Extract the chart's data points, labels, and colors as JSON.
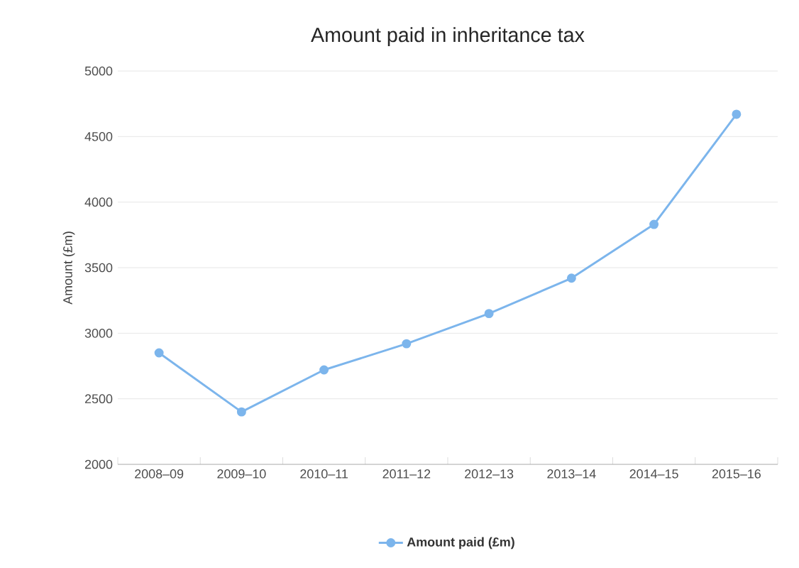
{
  "chart_data": {
    "type": "line",
    "title": "Amount paid in inheritance tax",
    "ylabel": "Amount (£m)",
    "categories": [
      "2008–09",
      "2009–10",
      "2010–11",
      "2011–12",
      "2012–13",
      "2013–14",
      "2014–15",
      "2015–16"
    ],
    "series": [
      {
        "name": "Amount paid (£m)",
        "color": "#7cb5ec",
        "values": [
          2850,
          2400,
          2720,
          2920,
          3150,
          3420,
          3830,
          4670
        ]
      }
    ],
    "ylim": [
      2000,
      5000
    ],
    "yticks": [
      2000,
      2500,
      3000,
      3500,
      4000,
      4500,
      5000
    ],
    "grid": "y",
    "legend": "bottom",
    "marker": "circle"
  }
}
